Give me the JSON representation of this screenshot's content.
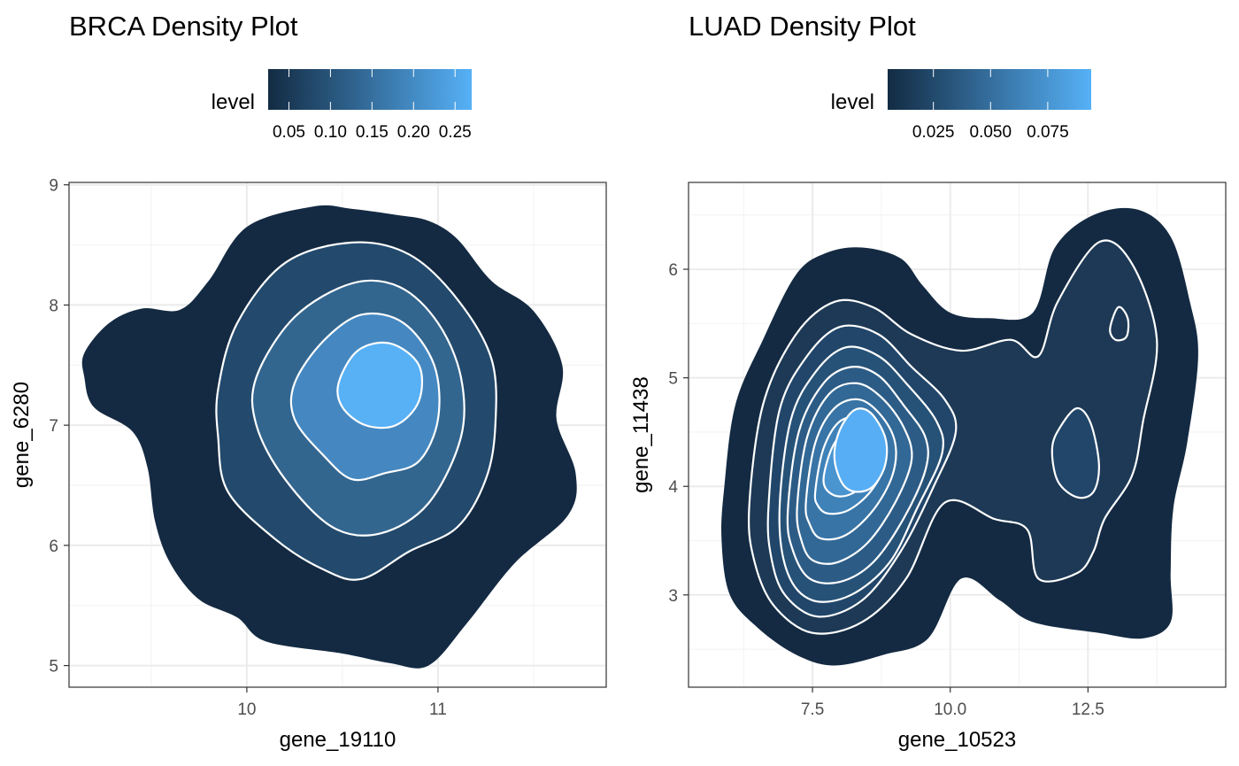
{
  "chart_data": [
    {
      "type": "density_contour",
      "title": "BRCA Density Plot",
      "xlabel": "gene_19110",
      "ylabel": "gene_6280",
      "xlim": [
        9.07,
        11.88
      ],
      "ylim": [
        4.82,
        9.02
      ],
      "xticks": [
        10,
        11
      ],
      "yticks": [
        5,
        6,
        7,
        8,
        9
      ],
      "grid": true,
      "legend": {
        "title": "level",
        "placement": "top",
        "range": [
          0.025,
          0.27
        ],
        "ticks": [
          0.05,
          0.1,
          0.15,
          0.2,
          0.25
        ],
        "tick_labels": [
          "0.05",
          "0.10",
          "0.15",
          "0.20",
          "0.25"
        ],
        "low_color": "#132B43",
        "high_color": "#56B1F7"
      },
      "contour_color": "#ffffff",
      "bands": [
        {
          "level": 0.05,
          "fill": "#142a42",
          "outline": [
            [
              9.15,
              7.6
            ],
            [
              9.28,
              7.85
            ],
            [
              9.45,
              7.97
            ],
            [
              9.65,
              7.96
            ],
            [
              9.8,
              8.2
            ],
            [
              10.0,
              8.65
            ],
            [
              10.35,
              8.82
            ],
            [
              10.55,
              8.8
            ],
            [
              10.78,
              8.75
            ],
            [
              10.95,
              8.7
            ],
            [
              11.1,
              8.55
            ],
            [
              11.28,
              8.2
            ],
            [
              11.5,
              7.95
            ],
            [
              11.65,
              7.5
            ],
            [
              11.62,
              7.05
            ],
            [
              11.72,
              6.6
            ],
            [
              11.68,
              6.25
            ],
            [
              11.4,
              5.85
            ],
            [
              11.15,
              5.35
            ],
            [
              10.95,
              5.0
            ],
            [
              10.75,
              5.02
            ],
            [
              10.5,
              5.1
            ],
            [
              10.1,
              5.2
            ],
            [
              9.95,
              5.4
            ],
            [
              9.75,
              5.55
            ],
            [
              9.6,
              5.85
            ],
            [
              9.52,
              6.2
            ],
            [
              9.48,
              6.65
            ],
            [
              9.4,
              6.95
            ],
            [
              9.2,
              7.15
            ],
            [
              9.15,
              7.4
            ]
          ]
        },
        {
          "level": 0.1,
          "fill": "#234a6d",
          "outline": [
            [
              9.85,
              7.3
            ],
            [
              9.95,
              7.85
            ],
            [
              10.2,
              8.35
            ],
            [
              10.55,
              8.52
            ],
            [
              10.85,
              8.42
            ],
            [
              11.1,
              8.05
            ],
            [
              11.28,
              7.55
            ],
            [
              11.3,
              7.0
            ],
            [
              11.25,
              6.55
            ],
            [
              11.1,
              6.15
            ],
            [
              10.85,
              5.95
            ],
            [
              10.6,
              5.72
            ],
            [
              10.4,
              5.8
            ],
            [
              10.15,
              6.05
            ],
            [
              9.9,
              6.45
            ],
            [
              9.85,
              6.9
            ]
          ]
        },
        {
          "level": 0.15,
          "fill": "#33668f",
          "outline": [
            [
              10.05,
              7.4
            ],
            [
              10.25,
              7.9
            ],
            [
              10.55,
              8.18
            ],
            [
              10.8,
              8.15
            ],
            [
              11.0,
              7.85
            ],
            [
              11.12,
              7.4
            ],
            [
              11.12,
              6.9
            ],
            [
              10.95,
              6.35
            ],
            [
              10.7,
              6.1
            ],
            [
              10.45,
              6.15
            ],
            [
              10.2,
              6.55
            ],
            [
              10.05,
              7.0
            ]
          ]
        },
        {
          "level": 0.2,
          "fill": "#4588c1",
          "outline": [
            [
              10.25,
              7.35
            ],
            [
              10.4,
              7.7
            ],
            [
              10.6,
              7.92
            ],
            [
              10.82,
              7.85
            ],
            [
              10.98,
              7.5
            ],
            [
              11.0,
              7.05
            ],
            [
              10.9,
              6.7
            ],
            [
              10.72,
              6.6
            ],
            [
              10.55,
              6.55
            ],
            [
              10.4,
              6.75
            ],
            [
              10.25,
              7.05
            ]
          ]
        },
        {
          "level": 0.25,
          "fill": "#58b0f5",
          "outline": [
            [
              10.48,
              7.35
            ],
            [
              10.58,
              7.62
            ],
            [
              10.75,
              7.68
            ],
            [
              10.9,
              7.5
            ],
            [
              10.9,
              7.2
            ],
            [
              10.78,
              7.0
            ],
            [
              10.62,
              7.0
            ],
            [
              10.5,
              7.15
            ]
          ]
        }
      ]
    },
    {
      "type": "density_contour",
      "title": "LUAD Density Plot",
      "xlabel": "gene_10523",
      "ylabel": "gene_11438",
      "xlim": [
        5.25,
        15.0
      ],
      "ylim": [
        2.15,
        6.8
      ],
      "xticks": [
        7.5,
        10.0,
        12.5
      ],
      "yticks": [
        3,
        4,
        5,
        6
      ],
      "grid": true,
      "legend": {
        "title": "level",
        "placement": "top",
        "range": [
          0.005,
          0.094
        ],
        "ticks": [
          0.025,
          0.05,
          0.075
        ],
        "tick_labels": [
          "0.025",
          "0.050",
          "0.075"
        ],
        "low_color": "#132B43",
        "high_color": "#56B1F7"
      },
      "contour_color": "#ffffff",
      "bands": [
        {
          "level": 0.01,
          "fill": "#142a42",
          "outline": [
            [
              5.9,
              4.0
            ],
            [
              6.1,
              4.75
            ],
            [
              6.6,
              5.35
            ],
            [
              7.2,
              5.95
            ],
            [
              7.75,
              6.15
            ],
            [
              8.4,
              6.2
            ],
            [
              9.1,
              6.1
            ],
            [
              9.5,
              5.85
            ],
            [
              10.0,
              5.6
            ],
            [
              10.7,
              5.55
            ],
            [
              11.5,
              5.6
            ],
            [
              11.9,
              6.2
            ],
            [
              12.6,
              6.5
            ],
            [
              13.4,
              6.55
            ],
            [
              14.0,
              6.3
            ],
            [
              14.35,
              5.7
            ],
            [
              14.5,
              5.2
            ],
            [
              14.3,
              4.4
            ],
            [
              14.05,
              3.8
            ],
            [
              14.0,
              3.2
            ],
            [
              14.0,
              2.75
            ],
            [
              13.5,
              2.6
            ],
            [
              12.7,
              2.65
            ],
            [
              11.5,
              2.75
            ],
            [
              10.9,
              2.95
            ],
            [
              10.2,
              3.15
            ],
            [
              9.6,
              2.6
            ],
            [
              8.8,
              2.45
            ],
            [
              7.9,
              2.35
            ],
            [
              7.2,
              2.45
            ],
            [
              6.5,
              2.7
            ],
            [
              6.0,
              3.0
            ],
            [
              5.85,
              3.5
            ]
          ]
        },
        {
          "level": 0.02,
          "fill": "#1d3955",
          "outline": [
            [
              6.35,
              3.8
            ],
            [
              6.6,
              4.75
            ],
            [
              7.2,
              5.4
            ],
            [
              7.9,
              5.7
            ],
            [
              8.6,
              5.65
            ],
            [
              9.3,
              5.4
            ],
            [
              10.2,
              5.25
            ],
            [
              11.1,
              5.35
            ],
            [
              11.6,
              5.2
            ],
            [
              11.95,
              5.7
            ],
            [
              12.7,
              6.25
            ],
            [
              13.3,
              6.05
            ],
            [
              13.75,
              5.35
            ],
            [
              13.5,
              4.6
            ],
            [
              13.3,
              4.1
            ],
            [
              12.8,
              3.7
            ],
            [
              12.6,
              3.4
            ],
            [
              12.3,
              3.2
            ],
            [
              11.6,
              3.15
            ],
            [
              11.4,
              3.6
            ],
            [
              10.8,
              3.7
            ],
            [
              9.9,
              3.85
            ],
            [
              9.2,
              3.15
            ],
            [
              8.4,
              2.75
            ],
            [
              7.5,
              2.65
            ],
            [
              6.8,
              2.9
            ],
            [
              6.45,
              3.3
            ]
          ]
        },
        {
          "level": 0.03,
          "fill": "#21466a",
          "outline": [
            [
              6.7,
              3.8
            ],
            [
              6.9,
              4.7
            ],
            [
              7.4,
              5.2
            ],
            [
              8.0,
              5.47
            ],
            [
              8.7,
              5.4
            ],
            [
              9.3,
              5.1
            ],
            [
              9.9,
              4.8
            ],
            [
              10.1,
              4.5
            ],
            [
              9.7,
              4.0
            ],
            [
              9.1,
              3.4
            ],
            [
              8.4,
              2.95
            ],
            [
              7.6,
              2.8
            ],
            [
              7.0,
              3.0
            ],
            [
              6.75,
              3.35
            ]
          ]
        },
        {
          "level": 0.04,
          "fill": "#275277",
          "outline": [
            [
              6.9,
              3.75
            ],
            [
              7.1,
              4.6
            ],
            [
              7.55,
              5.05
            ],
            [
              8.1,
              5.28
            ],
            [
              8.7,
              5.2
            ],
            [
              9.2,
              4.95
            ],
            [
              9.75,
              4.6
            ],
            [
              9.85,
              4.3
            ],
            [
              9.4,
              3.8
            ],
            [
              8.9,
              3.3
            ],
            [
              8.2,
              3.0
            ],
            [
              7.5,
              2.95
            ],
            [
              7.05,
              3.2
            ]
          ]
        },
        {
          "level": 0.05,
          "fill": "#2c5c86",
          "outline": [
            [
              7.05,
              3.75
            ],
            [
              7.25,
              4.5
            ],
            [
              7.7,
              4.95
            ],
            [
              8.2,
              5.1
            ],
            [
              8.7,
              5.02
            ],
            [
              9.15,
              4.75
            ],
            [
              9.55,
              4.45
            ],
            [
              9.55,
              4.15
            ],
            [
              9.15,
              3.7
            ],
            [
              8.6,
              3.3
            ],
            [
              8.0,
              3.12
            ],
            [
              7.45,
              3.15
            ],
            [
              7.15,
              3.4
            ]
          ]
        },
        {
          "level": 0.06,
          "fill": "#326895",
          "outline": [
            [
              7.22,
              3.8
            ],
            [
              7.4,
              4.45
            ],
            [
              7.8,
              4.85
            ],
            [
              8.3,
              4.95
            ],
            [
              8.75,
              4.82
            ],
            [
              9.15,
              4.55
            ],
            [
              9.3,
              4.25
            ],
            [
              9.0,
              3.85
            ],
            [
              8.5,
              3.48
            ],
            [
              7.95,
              3.3
            ],
            [
              7.5,
              3.32
            ],
            [
              7.3,
              3.5
            ]
          ]
        },
        {
          "level": 0.07,
          "fill": "#3874a6",
          "outline": [
            [
              7.38,
              3.85
            ],
            [
              7.55,
              4.4
            ],
            [
              7.9,
              4.72
            ],
            [
              8.35,
              4.8
            ],
            [
              8.75,
              4.65
            ],
            [
              9.0,
              4.4
            ],
            [
              8.95,
              4.1
            ],
            [
              8.6,
              3.78
            ],
            [
              8.1,
              3.55
            ],
            [
              7.65,
              3.52
            ],
            [
              7.45,
              3.65
            ]
          ]
        },
        {
          "level": 0.08,
          "fill": "#3f82b8",
          "outline": [
            [
              7.55,
              3.95
            ],
            [
              7.7,
              4.35
            ],
            [
              8.0,
              4.6
            ],
            [
              8.4,
              4.62
            ],
            [
              8.7,
              4.45
            ],
            [
              8.8,
              4.2
            ],
            [
              8.55,
              3.95
            ],
            [
              8.15,
              3.78
            ],
            [
              7.78,
              3.75
            ],
            [
              7.6,
              3.82
            ]
          ]
        },
        {
          "level": 0.085,
          "fill": "#4a94d0",
          "outline": [
            [
              7.7,
              4.05
            ],
            [
              7.85,
              4.35
            ],
            [
              8.1,
              4.5
            ],
            [
              8.45,
              4.5
            ],
            [
              8.65,
              4.3
            ],
            [
              8.55,
              4.08
            ],
            [
              8.2,
              3.93
            ],
            [
              7.88,
              3.92
            ]
          ]
        },
        {
          "level": 0.09,
          "fill": "#57aef4",
          "outline": [
            [
              7.9,
              4.25
            ],
            [
              7.98,
              4.5
            ],
            [
              8.25,
              4.7
            ],
            [
              8.55,
              4.68
            ],
            [
              8.82,
              4.45
            ],
            [
              8.82,
              4.2
            ],
            [
              8.6,
              4.0
            ],
            [
              8.3,
              3.95
            ],
            [
              8.05,
              4.02
            ]
          ]
        },
        {
          "level": 0.03,
          "fill": "#21466a",
          "outline": [
            [
              11.85,
              4.35
            ],
            [
              12.0,
              4.55
            ],
            [
              12.3,
              4.72
            ],
            [
              12.55,
              4.58
            ],
            [
              12.7,
              4.2
            ],
            [
              12.6,
              3.95
            ],
            [
              12.3,
              3.9
            ],
            [
              11.95,
              4.05
            ]
          ]
        },
        {
          "level": 0.03,
          "fill": "#1d3955",
          "outline": [
            [
              12.9,
              5.45
            ],
            [
              13.05,
              5.65
            ],
            [
              13.22,
              5.55
            ],
            [
              13.2,
              5.38
            ],
            [
              13.0,
              5.35
            ]
          ]
        }
      ]
    }
  ]
}
